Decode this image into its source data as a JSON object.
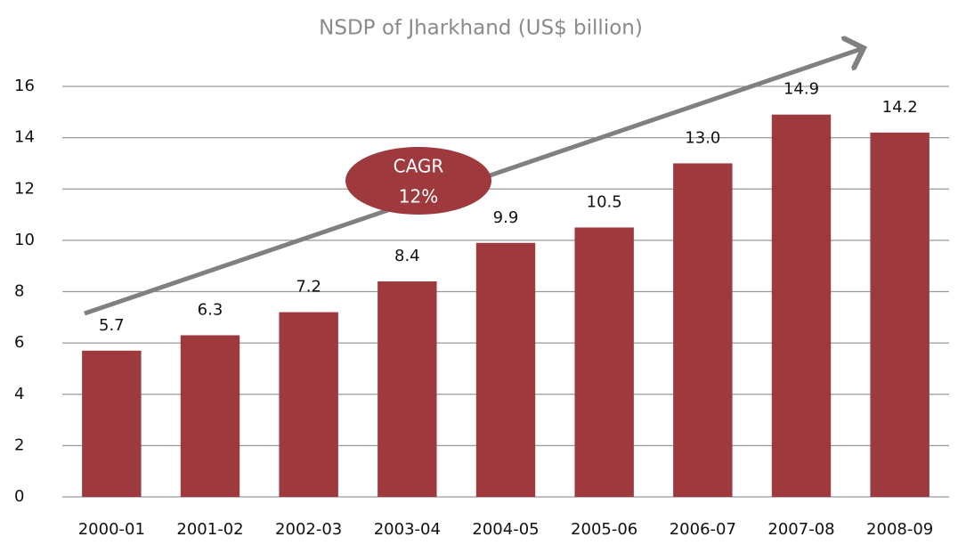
{
  "chart_data": {
    "type": "bar",
    "title": "NSDP of Jharkhand (US$ billion)",
    "categories": [
      "2000-01",
      "2001-02",
      "2002-03",
      "2003-04",
      "2004-05",
      "2005-06",
      "2006-07",
      "2007-08",
      "2008-09"
    ],
    "values": [
      5.7,
      6.3,
      7.2,
      8.4,
      9.9,
      10.5,
      13.0,
      14.9,
      14.2
    ],
    "value_labels": [
      "5.7",
      "6.3",
      "7.2",
      "8.4",
      "9.9",
      "10.5",
      "13.0",
      "14.9",
      "14.2"
    ],
    "color": "#9e3a3e",
    "ylim": [
      0,
      16
    ],
    "yticks": [
      0,
      2,
      4,
      6,
      8,
      10,
      12,
      14,
      16
    ],
    "grid": true,
    "annotation": [
      "CAGR",
      "12%"
    ]
  }
}
